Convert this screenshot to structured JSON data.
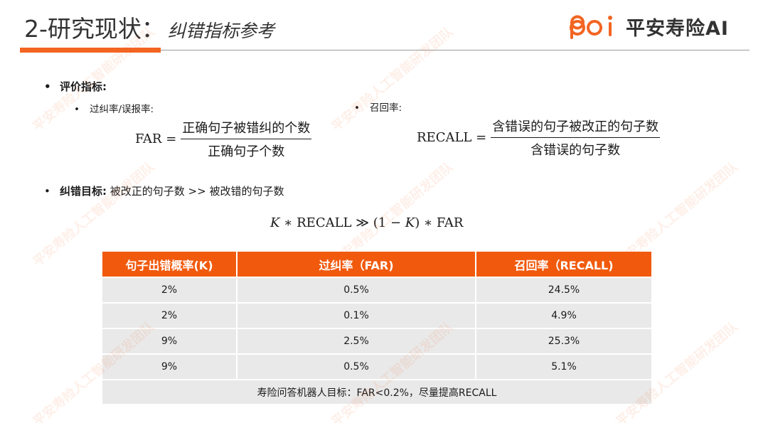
{
  "header": {
    "title_main": "2-研究现状：",
    "title_sub": "纠错指标参考",
    "logo_text": "平安寿险AI",
    "accent_color": "#f26522"
  },
  "watermark": "平安寿险人工智能研发团队",
  "metrics": {
    "heading": "评价指标:",
    "overcorrection_label": "过纠率/误报率:",
    "recall_label": "召回率:",
    "far_formula": {
      "lhs": "FAR =",
      "numerator": "正确句子被错纠的个数",
      "denominator": "正确句子个数"
    },
    "recall_formula": {
      "lhs": "RECALL =",
      "numerator": "含错误的句子被改正的句子数",
      "denominator": "含错误的句子数"
    }
  },
  "goal": {
    "label": "纠错目标:",
    "text": "被改正的句子数 >> 被改错的句子数",
    "formula": "𝐾 ∗ RECALL ≫ (1 − 𝐾) ∗ FAR"
  },
  "table": {
    "headers": [
      "句子出错概率(K)",
      "过纠率（FAR)",
      "召回率（RECALL)"
    ],
    "rows": [
      [
        "2%",
        "0.5%",
        "24.5%"
      ],
      [
        "2%",
        "0.1%",
        "4.9%"
      ],
      [
        "9%",
        "2.5%",
        "25.3%"
      ],
      [
        "9%",
        "0.5%",
        "5.1%"
      ]
    ],
    "footer": "寿险问答机器人目标：FAR<0.2%，尽量提高RECALL",
    "header_color": "#f15a0d",
    "cell_color": "#e9e9e9"
  }
}
